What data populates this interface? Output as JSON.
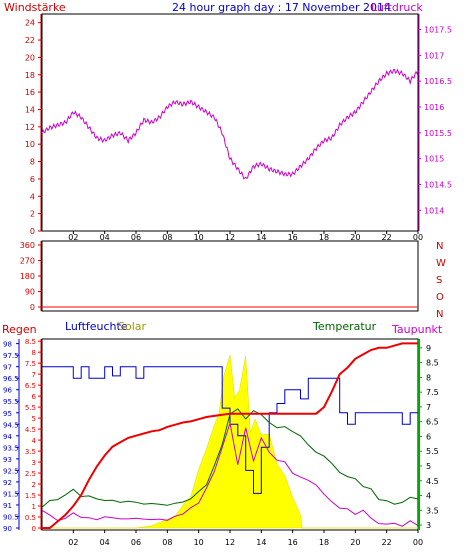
{
  "top": {
    "title": "24 hour graph day : 17 November 2014",
    "left_label": "Windstärke",
    "right_label": "Luftdruck"
  },
  "mid": {
    "right_letters": [
      "N",
      "W",
      "S",
      "O",
      "N"
    ]
  },
  "bottom": {
    "regen_label": "Regen",
    "feuchte_label": "Luftfeuchte",
    "solar_label": "Solar",
    "temp_label": "Temperatur",
    "taupunkt_label": "Taupunkt"
  },
  "colors": {
    "wind": "#cc0000",
    "pressure": "#cc00cc",
    "title": "#0000cc",
    "rain": "#ee0000",
    "humidity": "#0000cc",
    "solar": "#ffff00",
    "temperature": "#006600",
    "dewpoint": "#cc00cc",
    "axis_green": "#00aa00"
  },
  "chart_data": [
    {
      "type": "line",
      "x_ticks": [
        "02",
        "04",
        "06",
        "08",
        "10",
        "12",
        "14",
        "16",
        "18",
        "20",
        "22",
        "00"
      ],
      "y_left_ticks": [
        0,
        2,
        4,
        6,
        8,
        10,
        12,
        14,
        16,
        18,
        20,
        22,
        24
      ],
      "y_left_range": [
        0,
        25
      ],
      "y_right_ticks": [
        1014,
        1014.5,
        1015,
        1015.5,
        1016,
        1016.5,
        1017,
        1017.5
      ],
      "y_right_range": [
        1013.6,
        1017.8
      ],
      "grid": false,
      "series": [
        {
          "name": "Luftdruck",
          "axis": "right",
          "x": [
            0,
            0.5,
            1,
            1.5,
            2,
            2.5,
            3,
            3.5,
            4,
            4.5,
            5,
            5.5,
            6,
            6.5,
            7,
            7.5,
            8,
            8.5,
            9,
            9.5,
            10,
            10.5,
            11,
            11.5,
            12,
            12.5,
            13,
            13.5,
            14,
            14.5,
            15,
            15.5,
            16,
            16.5,
            17,
            17.5,
            18,
            18.5,
            19,
            19.5,
            20,
            20.5,
            21,
            21.5,
            22,
            22.5,
            23,
            23.5,
            24
          ],
          "y": [
            1015.5,
            1015.6,
            1015.65,
            1015.7,
            1015.9,
            1015.8,
            1015.6,
            1015.4,
            1015.35,
            1015.45,
            1015.5,
            1015.35,
            1015.5,
            1015.75,
            1015.7,
            1015.8,
            1016.0,
            1016.1,
            1016.05,
            1016.1,
            1016.0,
            1015.9,
            1015.8,
            1015.5,
            1015.0,
            1014.8,
            1014.6,
            1014.85,
            1014.9,
            1014.8,
            1014.75,
            1014.7,
            1014.7,
            1014.85,
            1015.0,
            1015.2,
            1015.35,
            1015.4,
            1015.65,
            1015.8,
            1015.9,
            1016.1,
            1016.3,
            1016.5,
            1016.65,
            1016.7,
            1016.65,
            1016.5,
            1016.7
          ]
        }
      ]
    },
    {
      "type": "scatter",
      "x_ticks": [
        "02",
        "04",
        "06",
        "08",
        "10",
        "12",
        "14",
        "16",
        "18",
        "20",
        "22",
        "00"
      ],
      "y_ticks": [
        0,
        90,
        180,
        270,
        360
      ],
      "y_range": [
        0,
        360
      ],
      "direction_labels": [
        "N",
        "W",
        "S",
        "O",
        "N"
      ],
      "series": [
        {
          "x": [],
          "y": []
        }
      ]
    },
    {
      "type": "line",
      "x_ticks": [
        "02",
        "04",
        "06",
        "08",
        "10",
        "12",
        "14",
        "16",
        "18",
        "20",
        "22",
        "00"
      ],
      "y_axes": {
        "humidity": {
          "ticks": [
            90,
            90.5,
            91,
            91.5,
            92,
            92.5,
            93,
            93.5,
            94,
            94.5,
            95,
            95.5,
            96,
            96.5,
            97,
            97.5,
            98
          ],
          "range": [
            90,
            98.2
          ]
        },
        "rain": {
          "ticks": [
            0,
            0.5,
            1,
            1.5,
            2,
            2.5,
            3,
            3.5,
            4,
            4.5,
            5,
            5.5,
            6,
            6.5,
            7,
            7.5,
            8,
            8.5
          ],
          "range": [
            0,
            8.6
          ]
        },
        "temperature": {
          "ticks": [
            3,
            3.5,
            4,
            4.5,
            5,
            5.5,
            6,
            6.5,
            7,
            7.5,
            8,
            8.5,
            9
          ],
          "range": [
            2.9,
            9.3
          ]
        }
      },
      "series": [
        {
          "name": "Regen",
          "axis": "rain",
          "x": [
            0,
            0.5,
            1,
            1.5,
            2,
            2.5,
            3,
            3.5,
            4,
            4.5,
            5,
            5.5,
            6,
            6.5,
            7,
            7.5,
            8,
            8.5,
            9,
            9.5,
            10,
            10.5,
            11,
            11.5,
            12,
            13,
            14,
            15,
            16,
            16.5,
            17,
            17.5,
            18,
            18.5,
            19,
            19.5,
            20,
            20.5,
            21,
            21.5,
            22,
            22.5,
            23,
            23.5,
            24
          ],
          "y": [
            0,
            0,
            0.3,
            0.6,
            1.0,
            1.5,
            2.2,
            2.8,
            3.3,
            3.7,
            3.9,
            4.1,
            4.2,
            4.3,
            4.4,
            4.45,
            4.6,
            4.7,
            4.8,
            4.85,
            4.95,
            5.05,
            5.1,
            5.15,
            5.2,
            5.2,
            5.2,
            5.2,
            5.2,
            5.2,
            5.2,
            5.2,
            5.5,
            6.2,
            7.0,
            7.3,
            7.7,
            7.9,
            8.1,
            8.2,
            8.2,
            8.3,
            8.4,
            8.4,
            8.4
          ]
        },
        {
          "name": "Luftfeuchte",
          "axis": "humidity",
          "x": [
            0,
            0.5,
            1,
            1.5,
            2,
            2.5,
            3,
            3.5,
            4,
            4.5,
            5,
            5.5,
            6,
            6.5,
            7,
            7.5,
            8,
            8.5,
            9,
            9.5,
            10,
            10.5,
            11,
            11.5,
            12,
            12.5,
            13,
            13.5,
            14,
            14.5,
            15,
            15.5,
            16,
            16.5,
            17,
            17.5,
            18,
            18.5,
            19,
            19.5,
            20,
            20.5,
            21,
            21.5,
            22,
            22.5,
            23,
            23.5,
            24
          ],
          "y": [
            97,
            97,
            97,
            97,
            96.5,
            97,
            96.5,
            96.5,
            97,
            96.6,
            97,
            97,
            96.5,
            97,
            97,
            97,
            97,
            97,
            97,
            97,
            97,
            97,
            97,
            95.2,
            94.5,
            94,
            92.5,
            91.5,
            93.5,
            95,
            95.4,
            96,
            96,
            95.6,
            96.5,
            96.5,
            96.5,
            96.5,
            95,
            94.5,
            95,
            95,
            95,
            95,
            95,
            95,
            94.5,
            95,
            95
          ]
        },
        {
          "name": "Temperatur",
          "axis": "temperature",
          "x": [
            0,
            0.5,
            1,
            1.5,
            2,
            2.5,
            3,
            3.5,
            4,
            4.5,
            5,
            5.5,
            6,
            6.5,
            7,
            7.5,
            8,
            8.5,
            9,
            9.5,
            10,
            10.5,
            11,
            11.5,
            12,
            12.5,
            13,
            13.5,
            14,
            14.5,
            15,
            15.5,
            16,
            16.5,
            17,
            17.5,
            18,
            18.5,
            19,
            19.5,
            20,
            20.5,
            21,
            21.5,
            22,
            22.5,
            23,
            23.5,
            24
          ],
          "y": [
            3.6,
            3.8,
            3.9,
            4.0,
            4.2,
            4.0,
            3.95,
            3.9,
            3.85,
            3.8,
            3.8,
            3.8,
            3.75,
            3.75,
            3.7,
            3.7,
            3.7,
            3.7,
            3.8,
            3.9,
            4.1,
            4.4,
            5.0,
            5.7,
            6.8,
            6.9,
            6.6,
            6.9,
            6.7,
            6.5,
            6.3,
            6.3,
            6.2,
            6.0,
            5.7,
            5.5,
            5.3,
            5.1,
            4.8,
            4.6,
            4.6,
            4.3,
            4.2,
            3.9,
            3.8,
            3.7,
            3.8,
            3.9,
            3.9
          ]
        },
        {
          "name": "Taupunkt",
          "axis": "temperature",
          "x": [
            0,
            0.5,
            1,
            1.5,
            2,
            2.5,
            3,
            3.5,
            4,
            4.5,
            5,
            5.5,
            6,
            6.5,
            7,
            7.5,
            8,
            8.5,
            9,
            9.5,
            10,
            10.5,
            11,
            11.5,
            12,
            12.5,
            13,
            13.5,
            14,
            14.5,
            15,
            15.5,
            16,
            16.5,
            17,
            17.5,
            18,
            18.5,
            19,
            19.5,
            20,
            20.5,
            21,
            21.5,
            22,
            22.5,
            23,
            23.5,
            24
          ],
          "y": [
            3.5,
            3.3,
            3.2,
            3.2,
            3.4,
            3.3,
            3.2,
            3.2,
            3.3,
            3.2,
            3.25,
            3.2,
            3.2,
            3.25,
            3.15,
            3.2,
            3.2,
            3.25,
            3.4,
            3.6,
            3.7,
            4.3,
            4.8,
            5.6,
            6.5,
            5.0,
            6.3,
            5.2,
            5.9,
            5.5,
            5.2,
            5.1,
            4.8,
            4.6,
            4.5,
            4.4,
            4.0,
            3.8,
            3.6,
            3.5,
            3.4,
            3.5,
            3.2,
            3.1,
            3.0,
            3.05,
            3.0,
            3.1,
            3.0
          ]
        },
        {
          "name": "Solar",
          "axis": "rain",
          "x": [
            0,
            6,
            7,
            8,
            8.5,
            9,
            9.5,
            10,
            10.5,
            11,
            11.3,
            11.6,
            12,
            12.3,
            12.6,
            13,
            13.3,
            13.6,
            14,
            14.5,
            15,
            15.5,
            16,
            16.5,
            16.6,
            24
          ],
          "y": [
            0,
            0,
            0.1,
            0.4,
            0.6,
            1.0,
            1.5,
            2.6,
            3.7,
            4.6,
            5.3,
            6.8,
            8.0,
            5.8,
            6.4,
            7.7,
            4.5,
            4.8,
            4.4,
            4.1,
            3.1,
            2.2,
            1.6,
            0.6,
            0,
            0
          ]
        }
      ]
    }
  ]
}
